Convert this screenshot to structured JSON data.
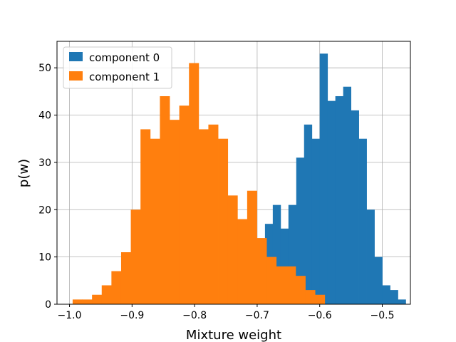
{
  "chart_data": {
    "type": "histogram",
    "title": "",
    "xlabel": "Mixture weight",
    "ylabel": "p(w)",
    "xlim": [
      -1.02,
      -0.455
    ],
    "ylim": [
      0,
      55.6
    ],
    "xticks": [
      -1.0,
      -0.9,
      -0.8,
      -0.7,
      -0.6,
      -0.5
    ],
    "xtick_labels": [
      "−1.0",
      "−0.9",
      "−0.8",
      "−0.7",
      "−0.6",
      "−0.5"
    ],
    "yticks": [
      0,
      10,
      20,
      30,
      40,
      50
    ],
    "ytick_labels": [
      "0",
      "10",
      "20",
      "30",
      "40",
      "50"
    ],
    "grid": true,
    "legend_position": "upper-left",
    "series": [
      {
        "name": "component 0",
        "color": "#1f77b4",
        "bin_start": -0.6875,
        "bin_width": 0.0125,
        "counts": [
          17,
          21,
          16,
          21,
          31,
          38,
          35,
          53,
          43,
          44,
          46,
          41,
          35,
          20,
          10,
          4,
          3,
          1
        ]
      },
      {
        "name": "component 1",
        "color": "#ff7f0e",
        "bin_start": -0.995,
        "bin_width": 0.0155,
        "counts": [
          1,
          1,
          2,
          4,
          7,
          11,
          20,
          37,
          35,
          44,
          39,
          42,
          51,
          37,
          38,
          35,
          23,
          18,
          24,
          14,
          10,
          8,
          8,
          6,
          3,
          2
        ]
      }
    ]
  }
}
